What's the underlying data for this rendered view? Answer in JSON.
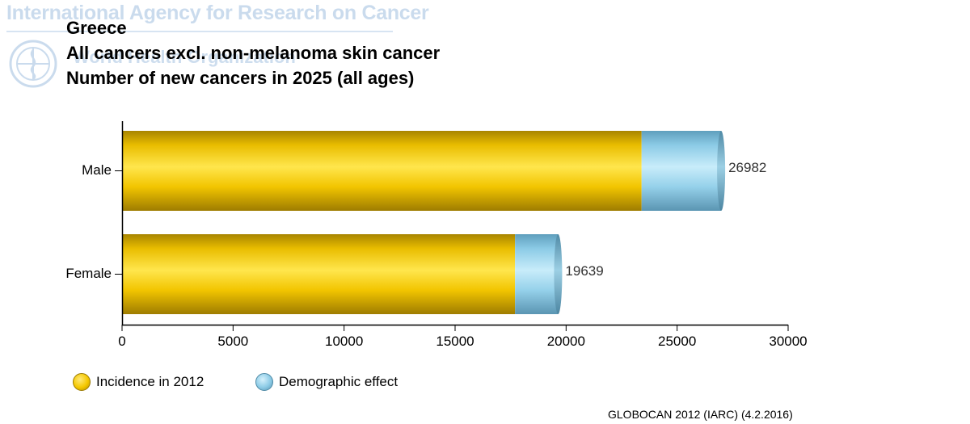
{
  "watermark": {
    "agency": "International Agency for Research on Cancer",
    "organisation": "World Health Organization"
  },
  "header": {
    "country": "Greece",
    "site": "All cancers excl. non-melanoma skin cancer",
    "measure": "Number of new cancers in 2025 (all ages)"
  },
  "chart_data": {
    "type": "bar",
    "orientation": "horizontal",
    "stacked": true,
    "title": "Greece",
    "subtitle": [
      "All cancers excl. non-melanoma skin cancer",
      "Number of new cancers in 2025 (all ages)"
    ],
    "categories": [
      "Male",
      "Female"
    ],
    "series": [
      {
        "name": "Incidence in 2012",
        "values": [
          23400,
          17700
        ],
        "color": "#f5c800"
      },
      {
        "name": "Demographic effect",
        "values": [
          3582,
          1939
        ],
        "color": "#8ccbe6"
      }
    ],
    "totals": [
      26982,
      19639
    ],
    "total_labels": [
      "26982",
      "19639"
    ],
    "xlim": [
      0,
      30000
    ],
    "xticks": [
      0,
      5000,
      10000,
      15000,
      20000,
      25000,
      30000
    ],
    "xtick_labels": [
      "0",
      "5000",
      "10000",
      "15000",
      "20000",
      "25000",
      "30000"
    ],
    "xlabel": "",
    "ylabel": "",
    "grid": false,
    "legend_position": "bottom-left"
  },
  "source": "GLOBOCAN 2012 (IARC) (4.2.2016)"
}
